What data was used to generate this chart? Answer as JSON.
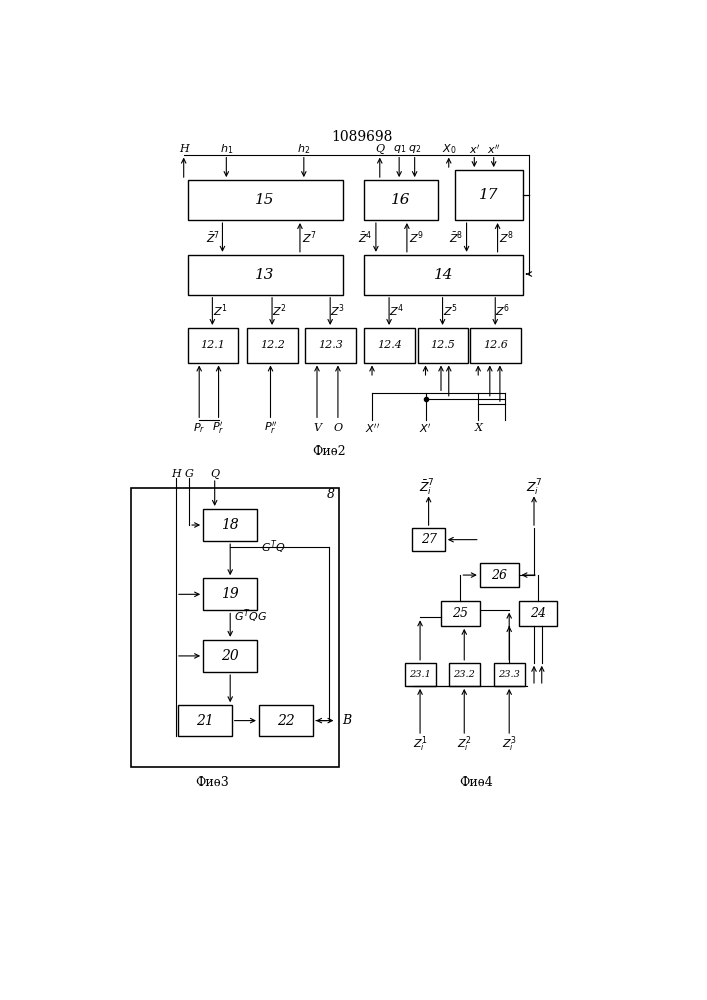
{
  "title": "1089698",
  "fig2_label": "Фиѳ2",
  "fig3_label": "Фиѳ3",
  "fig4_label": "Фиѳ4",
  "bg_color": "#ffffff"
}
